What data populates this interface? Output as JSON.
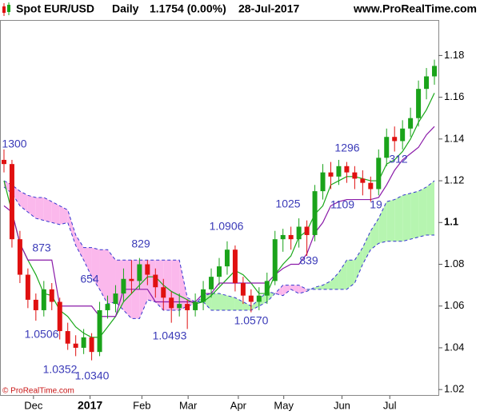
{
  "chart_data": {
    "type": "candlestick",
    "instrument": "Spot EUR/USD",
    "period": "Daily",
    "last_quote": "1.1754 (0.00%)",
    "date": "28-Jul-2017",
    "source": "www.ProRealTime.com",
    "copyright": "© ProRealTime.com",
    "up_color": "#1aa31a",
    "down_color": "#e01010",
    "xlim": [
      0,
      55
    ],
    "xticks": [
      {
        "value": 4.2,
        "label": "Dec"
      },
      {
        "value": 11.3,
        "label": "2017"
      },
      {
        "value": 17.8,
        "label": "Feb"
      },
      {
        "value": 23.6,
        "label": "Mar"
      },
      {
        "value": 29.9,
        "label": "Apr"
      },
      {
        "value": 35.6,
        "label": "May"
      },
      {
        "value": 42.9,
        "label": "Jun"
      },
      {
        "value": 48.9,
        "label": "Jul"
      }
    ],
    "ylim": [
      1.017,
      1.197
    ],
    "yticks": [
      1.18,
      1.16,
      1.14,
      1.12,
      1.1,
      1.08,
      1.06,
      1.04,
      1.02
    ],
    "candles": [
      [
        1.13,
        1.135,
        1.124,
        1.128
      ],
      [
        1.128,
        1.13,
        1.088,
        1.092
      ],
      [
        1.092,
        1.096,
        1.071,
        1.075
      ],
      [
        1.075,
        1.078,
        1.059,
        1.063
      ],
      [
        1.063,
        1.066,
        1.053,
        1.058
      ],
      [
        1.058,
        1.072,
        1.055,
        1.068
      ],
      [
        1.068,
        1.071,
        1.058,
        1.062
      ],
      [
        1.062,
        1.064,
        1.044,
        1.048
      ],
      [
        1.048,
        1.052,
        1.039,
        1.042
      ],
      [
        1.042,
        1.046,
        1.036,
        1.04
      ],
      [
        1.04,
        1.049,
        1.037,
        1.045
      ],
      [
        1.045,
        1.047,
        1.034,
        1.038
      ],
      [
        1.038,
        1.062,
        1.036,
        1.058
      ],
      [
        1.058,
        1.065,
        1.054,
        1.061
      ],
      [
        1.061,
        1.07,
        1.057,
        1.066
      ],
      [
        1.066,
        1.078,
        1.062,
        1.073
      ],
      [
        1.073,
        1.082,
        1.066,
        1.072
      ],
      [
        1.072,
        1.083,
        1.068,
        1.08
      ],
      [
        1.08,
        1.082,
        1.07,
        1.075
      ],
      [
        1.075,
        1.078,
        1.064,
        1.069
      ],
      [
        1.069,
        1.073,
        1.058,
        1.064
      ],
      [
        1.064,
        1.067,
        1.052,
        1.059
      ],
      [
        1.059,
        1.066,
        1.055,
        1.061
      ],
      [
        1.061,
        1.063,
        1.049,
        1.058
      ],
      [
        1.058,
        1.066,
        1.055,
        1.062
      ],
      [
        1.062,
        1.072,
        1.058,
        1.068
      ],
      [
        1.068,
        1.078,
        1.064,
        1.074
      ],
      [
        1.074,
        1.083,
        1.07,
        1.079
      ],
      [
        1.079,
        1.091,
        1.075,
        1.087
      ],
      [
        1.087,
        1.089,
        1.067,
        1.071
      ],
      [
        1.071,
        1.074,
        1.061,
        1.065
      ],
      [
        1.065,
        1.068,
        1.057,
        1.062
      ],
      [
        1.062,
        1.069,
        1.058,
        1.065
      ],
      [
        1.065,
        1.076,
        1.061,
        1.072
      ],
      [
        1.072,
        1.096,
        1.07,
        1.092
      ],
      [
        1.092,
        1.097,
        1.086,
        1.094
      ],
      [
        1.094,
        1.098,
        1.087,
        1.092
      ],
      [
        1.092,
        1.102,
        1.088,
        1.098
      ],
      [
        1.098,
        1.101,
        1.084,
        1.094
      ],
      [
        1.094,
        1.118,
        1.091,
        1.115
      ],
      [
        1.115,
        1.128,
        1.111,
        1.124
      ],
      [
        1.124,
        1.129,
        1.116,
        1.122
      ],
      [
        1.122,
        1.13,
        1.118,
        1.127
      ],
      [
        1.127,
        1.129,
        1.119,
        1.124
      ],
      [
        1.124,
        1.127,
        1.116,
        1.121
      ],
      [
        1.121,
        1.125,
        1.113,
        1.119
      ],
      [
        1.119,
        1.122,
        1.11,
        1.116
      ],
      [
        1.116,
        1.135,
        1.113,
        1.131
      ],
      [
        1.131,
        1.145,
        1.127,
        1.141
      ],
      [
        1.141,
        1.146,
        1.134,
        1.139
      ],
      [
        1.139,
        1.149,
        1.135,
        1.145
      ],
      [
        1.145,
        1.155,
        1.141,
        1.15
      ],
      [
        1.15,
        1.168,
        1.146,
        1.164
      ],
      [
        1.164,
        1.174,
        1.159,
        1.17
      ],
      [
        1.17,
        1.178,
        1.166,
        1.175
      ]
    ],
    "lines": [
      {
        "color": "#19a819",
        "values": [
          1.12,
          1.105,
          1.09,
          1.082,
          1.075,
          1.066,
          1.065,
          1.058,
          1.055,
          1.05,
          1.047,
          1.045,
          1.045,
          1.05,
          1.055,
          1.062,
          1.066,
          1.07,
          1.074,
          1.074,
          1.07,
          1.067,
          1.065,
          1.063,
          1.061,
          1.062,
          1.065,
          1.069,
          1.073,
          1.077,
          1.075,
          1.071,
          1.066,
          1.066,
          1.075,
          1.08,
          1.084,
          1.093,
          1.096,
          1.104,
          1.108,
          1.118,
          1.12,
          1.122,
          1.122,
          1.121,
          1.12,
          1.12,
          1.128,
          1.13,
          1.134,
          1.14,
          1.148,
          1.154,
          1.162
        ]
      },
      {
        "color": "#8a1aa8",
        "values": [
          1.108,
          1.105,
          1.09,
          1.082,
          1.082,
          1.082,
          1.082,
          1.06,
          1.06,
          1.06,
          1.06,
          1.06,
          1.055,
          1.055,
          1.055,
          1.068,
          1.068,
          1.068,
          1.068,
          1.062,
          1.062,
          1.062,
          1.062,
          1.062,
          1.062,
          1.066,
          1.066,
          1.071,
          1.071,
          1.071,
          1.071,
          1.071,
          1.071,
          1.071,
          1.075,
          1.078,
          1.08,
          1.08,
          1.085,
          1.095,
          1.1,
          1.108,
          1.11,
          1.111,
          1.111,
          1.111,
          1.111,
          1.112,
          1.118,
          1.125,
          1.13,
          1.133,
          1.136,
          1.142,
          1.146
        ]
      }
    ],
    "cloud": {
      "line_color": "#3535d0",
      "bull_color": "#b6f5b0",
      "bear_color": "#fbb8ec",
      "span_a": [
        1.117,
        1.114,
        1.108,
        1.105,
        1.102,
        1.101,
        1.1,
        1.099,
        1.1,
        1.089,
        1.082,
        1.074,
        1.068,
        1.061,
        1.062,
        1.058,
        1.054,
        1.054,
        1.063,
        1.062,
        1.058,
        1.058,
        1.058,
        1.06,
        1.061,
        1.065,
        1.066,
        1.066,
        1.065,
        1.064,
        1.062,
        1.06,
        1.063,
        1.067,
        1.066,
        1.065,
        1.068,
        1.066,
        1.067,
        1.069,
        1.07,
        1.072,
        1.076,
        1.082,
        1.082,
        1.088,
        1.096,
        1.102,
        1.11,
        1.111,
        1.113,
        1.114,
        1.115,
        1.117,
        1.12
      ],
      "span_b": [
        1.12,
        1.118,
        1.115,
        1.113,
        1.112,
        1.112,
        1.11,
        1.108,
        1.106,
        1.094,
        1.088,
        1.088,
        1.087,
        1.087,
        1.082,
        1.082,
        1.082,
        1.082,
        1.082,
        1.082,
        1.082,
        1.082,
        1.082,
        1.064,
        1.062,
        1.062,
        1.058,
        1.058,
        1.058,
        1.058,
        1.058,
        1.058,
        1.06,
        1.062,
        1.066,
        1.07,
        1.07,
        1.07,
        1.068,
        1.068,
        1.068,
        1.068,
        1.068,
        1.068,
        1.071,
        1.08,
        1.087,
        1.09,
        1.091,
        1.091,
        1.091,
        1.092,
        1.093,
        1.094,
        1.094
      ]
    },
    "annotations": [
      "1300",
      "873",
      "654",
      "829",
      "1.0506",
      "1.0352",
      "1.0340",
      "1.0493",
      "1.0906",
      "1.0570",
      "1025",
      "839",
      "1296",
      "1109",
      "19",
      "312"
    ]
  }
}
